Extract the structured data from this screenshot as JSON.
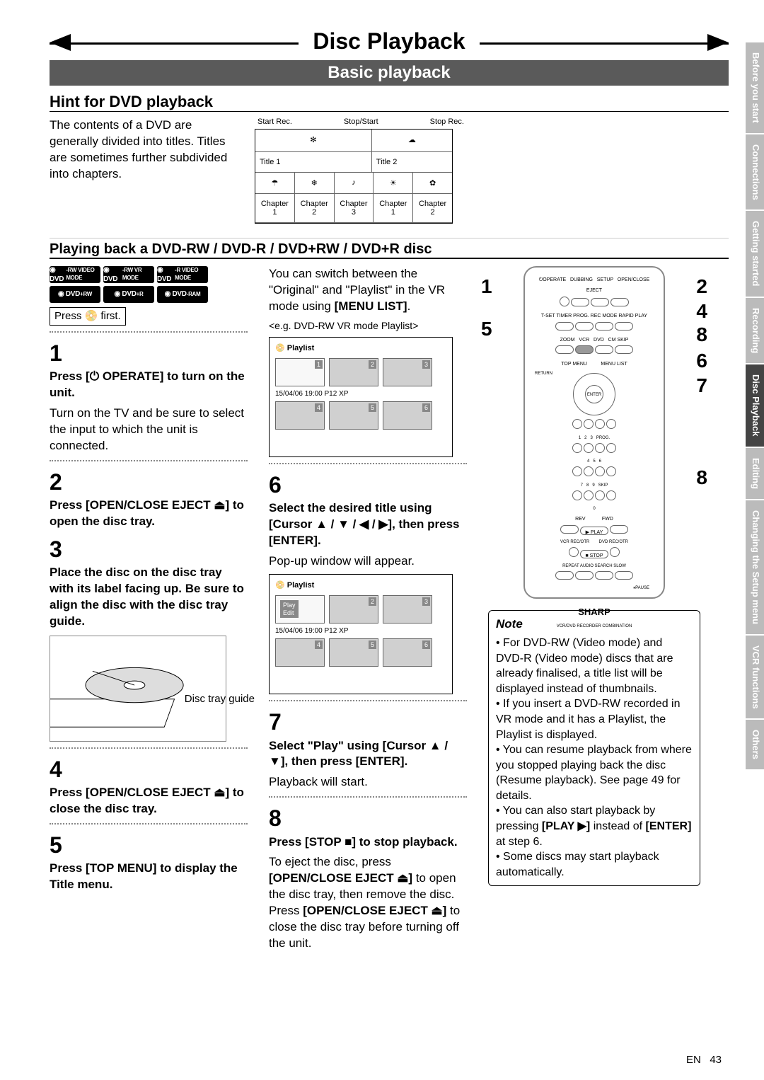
{
  "page": {
    "title": "Disc Playback",
    "subtitle": "Basic playback",
    "footer_lang": "EN",
    "footer_page": "43"
  },
  "hint": {
    "heading": "Hint for DVD playback",
    "body": "The contents of a DVD are generally divided into titles. Titles are sometimes further subdivided into chapters."
  },
  "timeline": {
    "start_rec": "Start Rec.",
    "stop_start": "Stop/Start",
    "stop_rec": "Stop Rec.",
    "title1": "Title 1",
    "title2": "Title 2",
    "ch1": "Chapter 1",
    "ch2": "Chapter 2",
    "ch3": "Chapter 3",
    "ch1b": "Chapter 1",
    "ch2b": "Chapter 2"
  },
  "section2_heading": "Playing back a DVD-RW / DVD-R / DVD+RW / DVD+R disc",
  "dvd_badges": [
    "DVD -RW VIDEO MODE",
    "DVD -RW VR MODE",
    "DVD -R VIDEO MODE",
    "DVD +RW",
    "DVD +R",
    "DVD -RAM"
  ],
  "press_first": "Press 📀 first.",
  "steps": {
    "s1": {
      "n": "1",
      "bold": "Press [⏻ OPERATE] to turn on the unit.",
      "body": "Turn on the TV and be sure to select the input to which the unit is connected."
    },
    "s2": {
      "n": "2",
      "bold": "Press [OPEN/CLOSE EJECT ⏏] to open the disc tray."
    },
    "s3": {
      "n": "3",
      "bold": "Place the disc on the disc tray with its label facing up. Be sure to align the disc with the disc tray guide."
    },
    "s3_label": "Disc tray guide",
    "s4": {
      "n": "4",
      "bold": "Press [OPEN/CLOSE EJECT ⏏] to close the disc tray."
    },
    "s5": {
      "n": "5",
      "bold": "Press [TOP MENU] to display the Title menu."
    },
    "s5_body1": "You can switch between the \"Original\" and \"Playlist\" in the VR mode using ",
    "s5_body_bold": "[MENU LIST]",
    "s5_body2": ".",
    "s5_caption": "<e.g. DVD-RW VR mode Playlist>",
    "s6": {
      "n": "6",
      "bold": "Select the desired title using [Cursor ▲ / ▼ / ◀ / ▶], then press [ENTER].",
      "body": "Pop-up window will appear."
    },
    "s7": {
      "n": "7",
      "bold": "Select \"Play\" using [Cursor ▲ / ▼], then press [ENTER].",
      "body": "Playback will start."
    },
    "s8": {
      "n": "8",
      "bold": "Press [STOP ■] to stop playback.",
      "body1": "To eject the disc, press ",
      "body_b1": "[OPEN/CLOSE EJECT ⏏]",
      "body2": " to open the disc tray, then remove the disc. Press ",
      "body_b2": "[OPEN/CLOSE EJECT ⏏]",
      "body3": " to close the disc tray before turning off the unit."
    }
  },
  "playlist": {
    "header": "Playlist",
    "info": "15/04/06  19:00  P12  XP",
    "popup_play": "Play",
    "popup_edit": "Edit"
  },
  "remote": {
    "nums_left": [
      "1",
      "5"
    ],
    "nums_right": [
      "2",
      "4",
      "8",
      "6",
      "7",
      "8"
    ],
    "brand": "SHARP",
    "desc": "VCR/DVD RECORDER COMBINATION"
  },
  "note": {
    "heading": "Note",
    "items": [
      "For DVD-RW (Video mode) and DVD-R (Video mode) discs that are already finalised, a title list will be displayed instead of thumbnails.",
      "If you insert a DVD-RW recorded in VR mode and it has a Playlist, the Playlist is displayed.",
      "You can resume playback from where you stopped playing back the disc (Resume playback). See page 49 for details.",
      "You can also start playback by pressing [PLAY ▶] instead of [ENTER] at step 6.",
      "Some discs may start playback automatically."
    ]
  },
  "side_tabs": [
    {
      "label": "Before you start",
      "active": false
    },
    {
      "label": "Connections",
      "active": false
    },
    {
      "label": "Getting started",
      "active": false
    },
    {
      "label": "Recording",
      "active": false
    },
    {
      "label": "Disc Playback",
      "active": true
    },
    {
      "label": "Editing",
      "active": false
    },
    {
      "label": "Changing the Setup menu",
      "active": false
    },
    {
      "label": "VCR functions",
      "active": false
    },
    {
      "label": "Others",
      "active": false
    }
  ],
  "colors": {
    "subtitle_bg": "#5a5a5a",
    "tab_inactive": "#bbbbbb",
    "tab_active": "#444444",
    "text": "#000000"
  }
}
